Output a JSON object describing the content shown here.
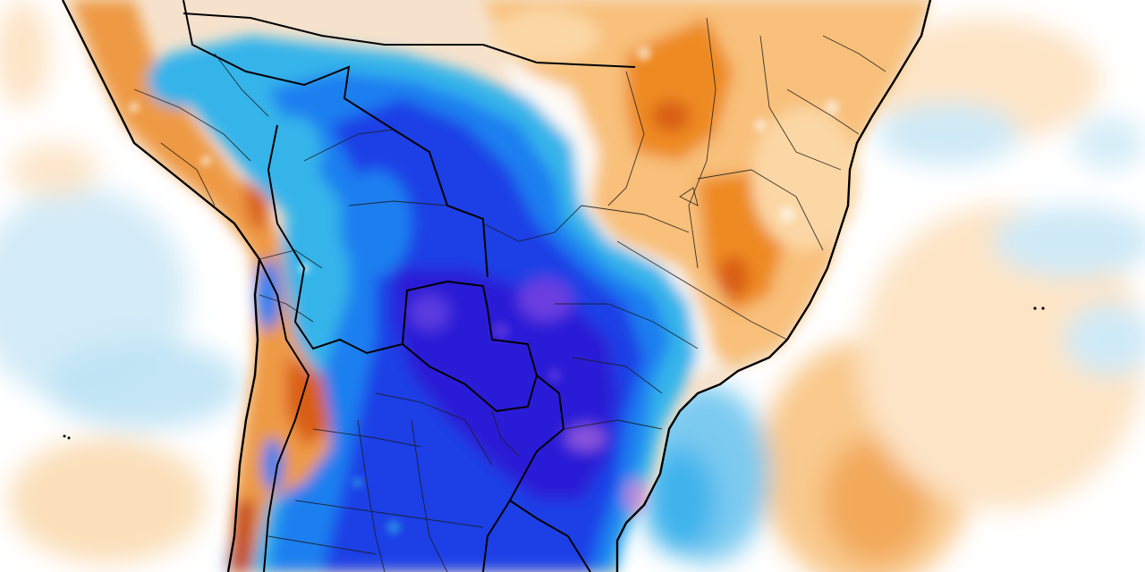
{
  "map": {
    "type": "temperature-anomaly",
    "region": "South America",
    "legend": null,
    "colors": {
      "background": "#ffffff",
      "ocean_cool_light": "#d6eef8",
      "ocean_cool": "#b3e0f5",
      "cold_1": "#8fd3f2",
      "cold_2": "#34b4ea",
      "cold_3": "#1c7ff0",
      "cold_4": "#1a3fe6",
      "cold_5": "#2a1fd6",
      "cold_extreme": "#b78ad8",
      "warm_light": "#fde4c6",
      "warm_1": "#fbcf94",
      "warm_2": "#f6ad55",
      "warm_3": "#ee8a22",
      "warm_4": "#d95f14",
      "warm_extreme": "#b53412",
      "country_border": "#000000",
      "state_border": "#1a1a1a"
    },
    "layers": [
      {
        "name": "ocean-warm-anomaly-east",
        "level": "warm_light"
      },
      {
        "name": "ocean-warm-anomaly-south",
        "level": "warm_1"
      },
      {
        "name": "ocean-cool-anomaly-pacific",
        "level": "ocean_cool"
      },
      {
        "name": "cold-anomaly-interior",
        "level": "cold_4"
      },
      {
        "name": "warm-anomaly-northeast-brazil",
        "level": "warm_2"
      },
      {
        "name": "andes-mixed-anomaly",
        "level": "warm_3"
      }
    ]
  }
}
